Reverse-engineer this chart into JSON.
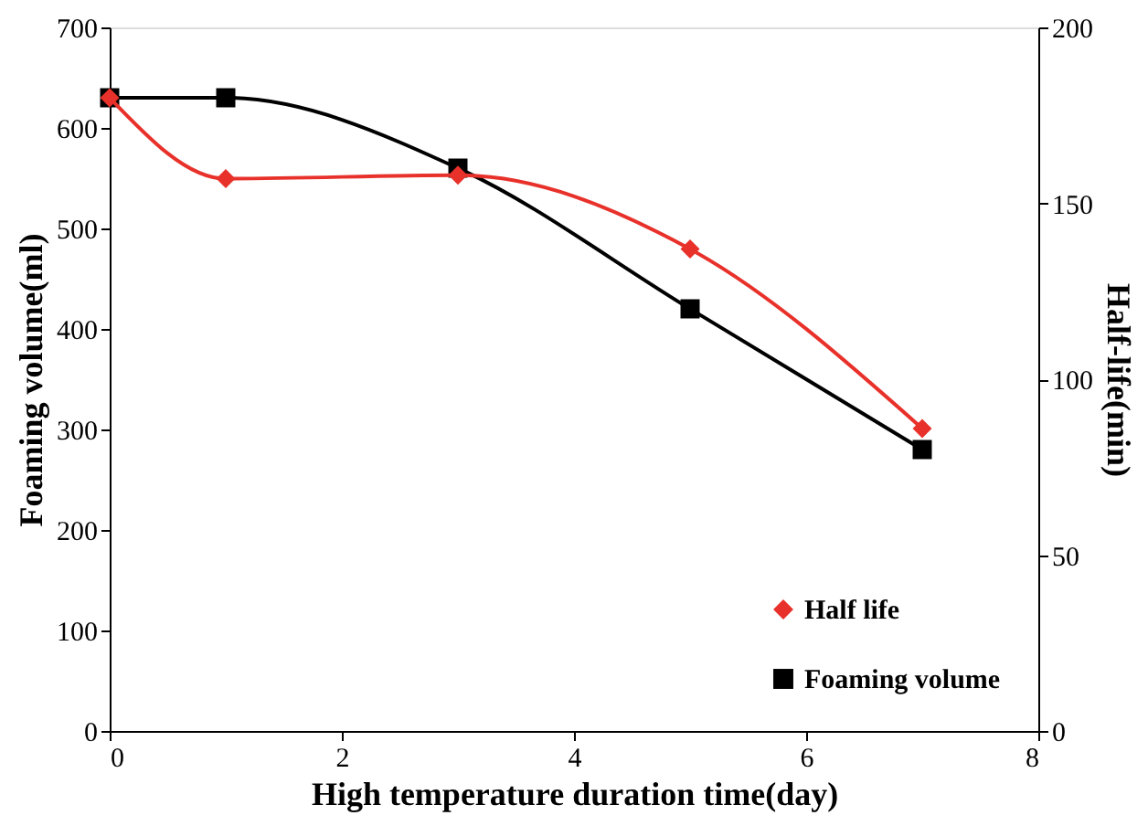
{
  "chart_data": {
    "type": "line",
    "xlabel": "High temperature duration time(day)",
    "ylabel": "Foaming volume(ml)",
    "y2label": "Half-life(min)",
    "x": [
      0,
      1,
      3,
      5,
      7
    ],
    "series": [
      {
        "name": "Half life",
        "color": "#e8312a",
        "values": [
          180,
          157,
          158,
          137,
          86
        ],
        "axis": "y2",
        "marker": "diamond"
      },
      {
        "name": "Foaming volume",
        "color": "#000000",
        "values": [
          630,
          630,
          560,
          420,
          280
        ],
        "marker": "square"
      }
    ],
    "xlim": [
      0,
      8
    ],
    "xticks": [
      0,
      2,
      4,
      6,
      8
    ],
    "ylim": [
      0,
      700
    ],
    "yticks": [
      0,
      100,
      200,
      300,
      400,
      500,
      600,
      700
    ],
    "y2lim": [
      0,
      200
    ],
    "y2ticks": [
      0,
      50,
      100,
      150,
      200
    ],
    "grid": false,
    "legend": "bottom right",
    "line_style": "solid"
  }
}
